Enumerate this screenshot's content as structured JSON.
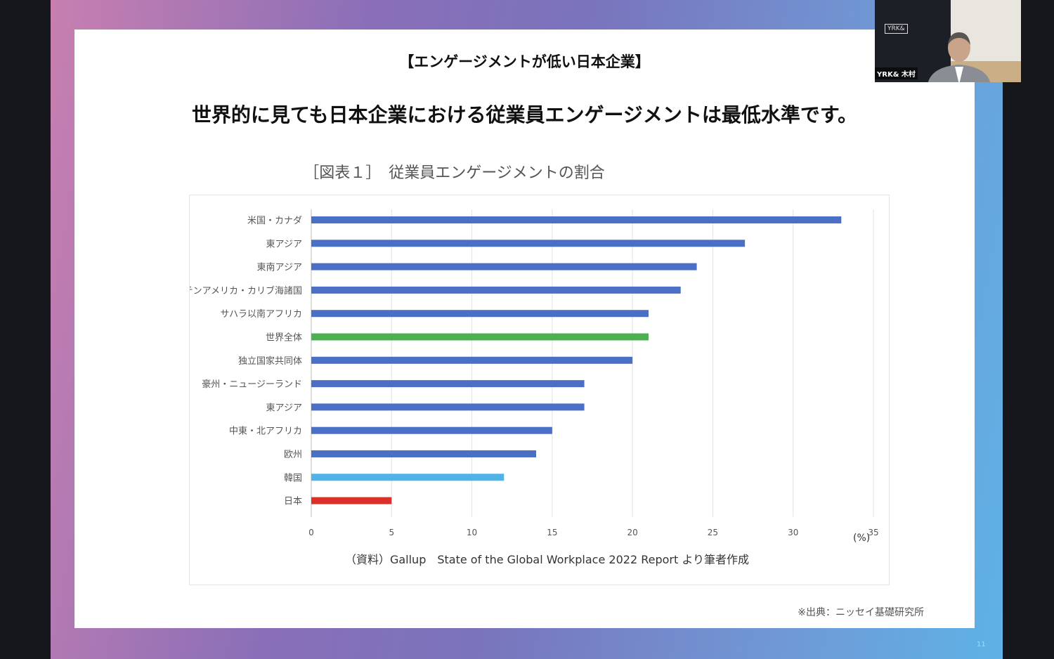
{
  "slide": {
    "subtitle": "【エンゲージメントが低い日本企業】",
    "title": "世界的に見ても日本企業における従業員エンゲージメントは最低水準です。",
    "credit": "※出典：ニッセイ基礎研究所",
    "page_number": "11"
  },
  "video": {
    "participant_name": "YRK& 木村",
    "logo_text": "YRK&"
  },
  "chart_data": {
    "type": "bar",
    "orientation": "horizontal",
    "title": "［図表１］　従業員エンゲージメントの割合",
    "xlabel": "(%)",
    "xlim": [
      0,
      35
    ],
    "xticks": [
      0,
      5,
      10,
      15,
      20,
      25,
      30,
      35
    ],
    "grid": "vertical",
    "categories": [
      "米国・カナダ",
      "東アジア",
      "東南アジア",
      "ラテンアメリカ・カリブ海諸国",
      "サハラ以南アフリカ",
      "世界全体",
      "独立国家共同体",
      "豪州・ニュージーランド",
      "東アジア",
      "中東・北アフリカ",
      "欧州",
      "韓国",
      "日本"
    ],
    "values": [
      33,
      27,
      24,
      23,
      21,
      21,
      20,
      17,
      17,
      15,
      14,
      12,
      5
    ],
    "colors": [
      "#4a6fc4",
      "#4a6fc4",
      "#4a6fc4",
      "#4a6fc4",
      "#4a6fc4",
      "#4caf50",
      "#4a6fc4",
      "#4a6fc4",
      "#4a6fc4",
      "#4a6fc4",
      "#4a6fc4",
      "#4fb3e8",
      "#d9302a"
    ],
    "source": "（資料）Gallup　State of the Global Workplace 2022 Report より筆者作成"
  }
}
